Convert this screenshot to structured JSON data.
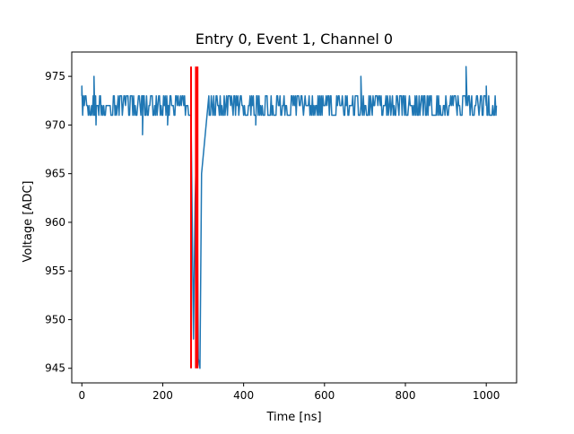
{
  "chart_data": {
    "type": "line",
    "title": "Entry 0, Event 1, Channel 0",
    "xlabel": "Time [ns]",
    "ylabel": "Voltage [ADC]",
    "xlim": [
      -25,
      1075
    ],
    "ylim": [
      943.5,
      977.5
    ],
    "xticks": [
      0,
      200,
      400,
      600,
      800,
      1000
    ],
    "yticks": [
      945,
      950,
      955,
      960,
      965,
      970,
      975
    ],
    "grid": false,
    "legend": "none",
    "colors": {
      "waveform": "#1f77b4",
      "markers": "#ff0000"
    },
    "baseline": {
      "x_range": [
        0,
        1025
      ],
      "low": 971,
      "high": 973,
      "typical": 972
    },
    "waveform_features": [
      {
        "x": 0,
        "y": 974
      },
      {
        "x": 30,
        "y": 975
      },
      {
        "x": 35,
        "y": 970
      },
      {
        "x": 150,
        "y": 969
      },
      {
        "x": 212,
        "y": 970
      },
      {
        "x": 270,
        "y": 971
      },
      {
        "x": 276,
        "y": 948
      },
      {
        "x": 280,
        "y": 962
      },
      {
        "x": 284,
        "y": 969
      },
      {
        "x": 288,
        "y": 946
      },
      {
        "x": 292,
        "y": 945
      },
      {
        "x": 296,
        "y": 965
      },
      {
        "x": 305,
        "y": 969
      },
      {
        "x": 315,
        "y": 971
      },
      {
        "x": 430,
        "y": 970
      },
      {
        "x": 690,
        "y": 975
      },
      {
        "x": 950,
        "y": 976
      },
      {
        "x": 1000,
        "y": 974
      },
      {
        "x": 1025,
        "y": 972
      }
    ],
    "vertical_markers": [
      {
        "x": 270,
        "ymin": 945,
        "ymax": 976
      },
      {
        "x": 282,
        "ymin": 945,
        "ymax": 976
      },
      {
        "x": 286,
        "ymin": 945,
        "ymax": 976
      }
    ]
  }
}
